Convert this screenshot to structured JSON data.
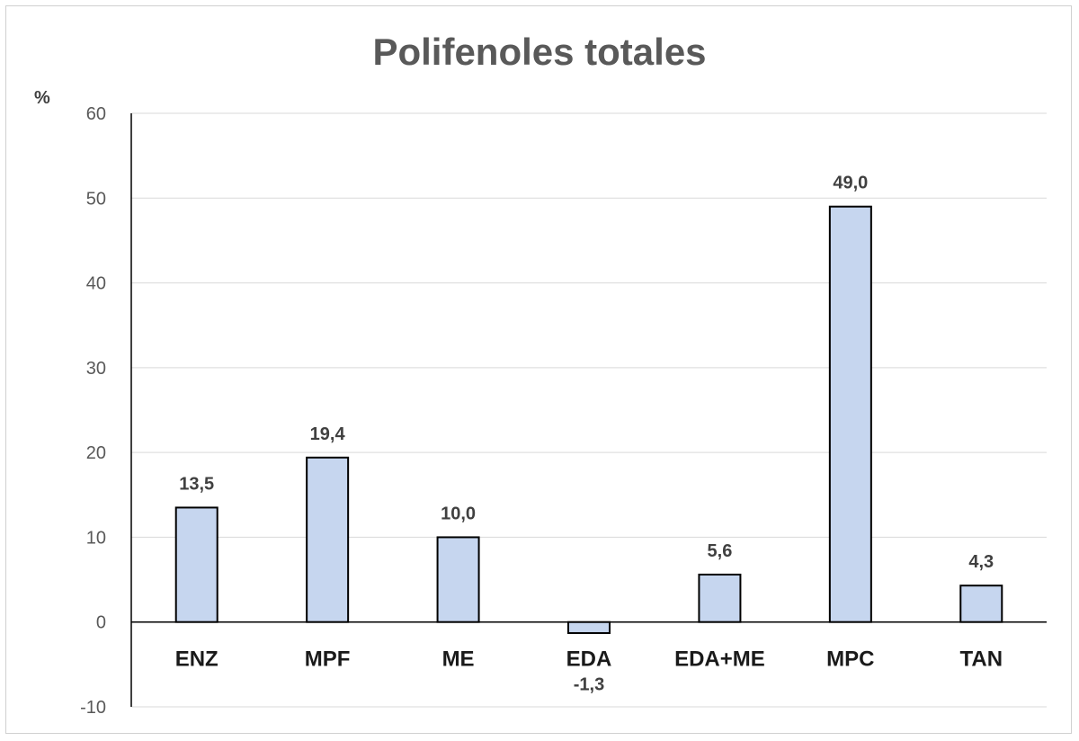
{
  "chart_data": {
    "type": "bar",
    "title": "Polifenoles totales",
    "ylabel": "%",
    "xlabel": "",
    "categories": [
      "ENZ",
      "MPF",
      "ME",
      "EDA",
      "EDA+ME",
      "MPC",
      "TAN"
    ],
    "values": [
      13.5,
      19.4,
      10.0,
      -1.3,
      5.6,
      49.0,
      4.3
    ],
    "data_labels": [
      "13,5",
      "19,4",
      "10,0",
      "-1,3",
      "5,6",
      "49,0",
      "4,3"
    ],
    "ylim": [
      -10,
      60
    ],
    "yticks": [
      60,
      50,
      40,
      30,
      20,
      10,
      0,
      -10
    ],
    "grid": true,
    "legend": "none",
    "colors": {
      "bar_fill": "#c6d6ef",
      "bar_stroke": "#000000",
      "gridline": "#d9d9d9",
      "axis": "#000000"
    }
  }
}
